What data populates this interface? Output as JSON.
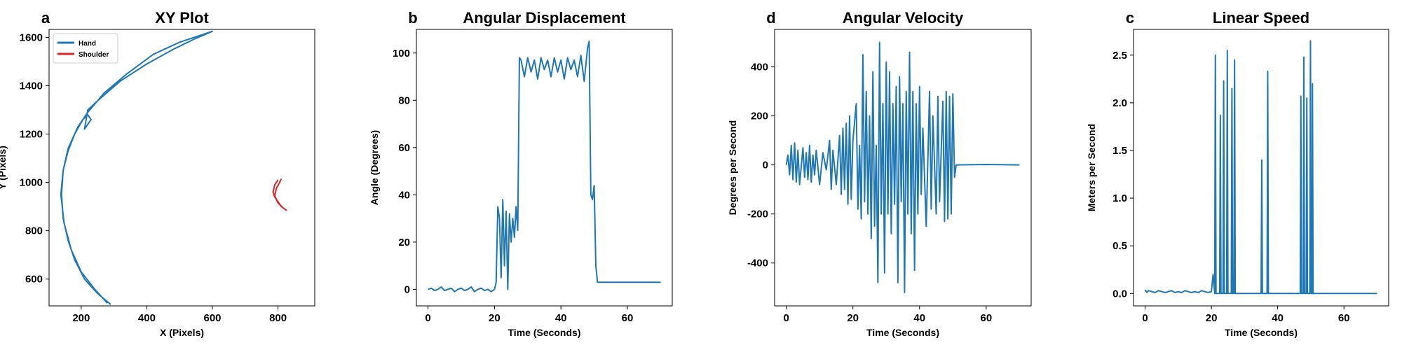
{
  "chart_data": [
    {
      "type": "line",
      "panel": "a",
      "title": "XY Plot",
      "xlabel": "X (Pixels)",
      "ylabel": "Y (Pixels)",
      "xlim": [
        102,
        912
      ],
      "ylim": [
        489,
        1633
      ],
      "xticks": [
        200,
        400,
        600,
        800
      ],
      "yticks": [
        600,
        800,
        1000,
        1200,
        1400,
        1600
      ],
      "legend": "upper left",
      "series": [
        {
          "name": "Hand",
          "color": "#1f77b4",
          "x": [
            290,
            250,
            210,
            180,
            160,
            145,
            140,
            145,
            160,
            180,
            205,
            220,
            230,
            210,
            220,
            260,
            320,
            400,
            480,
            540,
            600,
            500,
            420,
            340,
            270,
            220,
            190,
            160,
            145,
            138,
            148,
            170,
            200,
            240,
            280
          ],
          "values": [
            495,
            540,
            600,
            680,
            760,
            850,
            950,
            1050,
            1130,
            1200,
            1260,
            1280,
            1260,
            1220,
            1300,
            1350,
            1420,
            1490,
            1550,
            1590,
            1625,
            1580,
            1530,
            1450,
            1370,
            1290,
            1230,
            1140,
            1050,
            950,
            830,
            720,
            630,
            560,
            500
          ]
        },
        {
          "name": "Shoulder",
          "color": "#d62728",
          "x": [
            800,
            790,
            785,
            790,
            800,
            810,
            820,
            825,
            815,
            800,
            790,
            795,
            805,
            810
          ],
          "values": [
            1010,
            990,
            960,
            940,
            920,
            900,
            890,
            885,
            895,
            915,
            945,
            975,
            1000,
            1015
          ]
        }
      ]
    },
    {
      "type": "line",
      "panel": "b",
      "title": "Angular Displacement",
      "xlabel": "Time (Seconds)",
      "ylabel": "Angle (Degrees)",
      "xlim": [
        -3.5,
        73.5
      ],
      "ylim": [
        -7,
        110
      ],
      "xticks": [
        0,
        20,
        40,
        60
      ],
      "yticks": [
        0,
        20,
        40,
        60,
        80,
        100
      ],
      "series": [
        {
          "color": "#1f77b4",
          "x": [
            0,
            1,
            2,
            3,
            4,
            5,
            6,
            7,
            8,
            9,
            10,
            11,
            12,
            13,
            14,
            15,
            16,
            17,
            18,
            19,
            20,
            20.5,
            21,
            21.5,
            22,
            22.5,
            23,
            23.5,
            24,
            24.5,
            25,
            25.5,
            26,
            26.5,
            27,
            27.5,
            28,
            29,
            30,
            31,
            32,
            33,
            34,
            35,
            36,
            37,
            38,
            39,
            40,
            41,
            42,
            43,
            44,
            45,
            46,
            47,
            48,
            48.5,
            49,
            49.5,
            50,
            50.5,
            51,
            55,
            60,
            65,
            70
          ],
          "values": [
            0,
            0.5,
            -0.5,
            0,
            1,
            -0.5,
            0,
            0.5,
            -1,
            0,
            0.5,
            -0.5,
            0,
            1,
            -1,
            0,
            0.5,
            -0.5,
            0,
            -1,
            0,
            3,
            35,
            30,
            5,
            38,
            10,
            33,
            0,
            32,
            20,
            30,
            22,
            35,
            25,
            98,
            97,
            90,
            98,
            92,
            97,
            89,
            98,
            93,
            97,
            90,
            98,
            92,
            97,
            89,
            98,
            93,
            97,
            90,
            99,
            88,
            102,
            105,
            40,
            38,
            44,
            10,
            3,
            3,
            3,
            3,
            3
          ]
        }
      ]
    },
    {
      "type": "line",
      "panel": "d",
      "title": "Angular Velocity",
      "xlabel": "Time (Seconds)",
      "ylabel": "Degrees per Second",
      "xlim": [
        -3.5,
        73.5
      ],
      "ylim": [
        -575,
        553
      ],
      "xticks": [
        0,
        20,
        40,
        60
      ],
      "yticks": [
        -400,
        -200,
        0,
        200,
        400
      ],
      "series": [
        {
          "color": "#1f77b4",
          "x": [
            0,
            0.5,
            1,
            1.5,
            2,
            2.5,
            3,
            3.5,
            4,
            5,
            5.5,
            6,
            6.5,
            7,
            7.5,
            8,
            8.5,
            9,
            10,
            11,
            12,
            13,
            13.5,
            14,
            15,
            16,
            16.5,
            17,
            17.5,
            18,
            18.5,
            19,
            19.5,
            20,
            21,
            21.5,
            22,
            22.5,
            23,
            23.5,
            24,
            24.5,
            25,
            25.5,
            26,
            26.5,
            27,
            27.5,
            28,
            28.5,
            29,
            29.5,
            30,
            30.5,
            31,
            31.5,
            32,
            32.5,
            33,
            33.5,
            34,
            34.5,
            35,
            35.5,
            36,
            36.5,
            37,
            37.5,
            38,
            38.5,
            39,
            39.5,
            40,
            40.5,
            41,
            42,
            43,
            43.5,
            44,
            45,
            45.5,
            46,
            47,
            47.5,
            48,
            48.5,
            49,
            49.5,
            50,
            50.5,
            51,
            60,
            70
          ],
          "values": [
            0,
            40,
            -40,
            80,
            -60,
            90,
            -70,
            60,
            -80,
            70,
            -50,
            50,
            -60,
            80,
            -70,
            40,
            -40,
            60,
            -80,
            50,
            -20,
            100,
            -100,
            60,
            -80,
            120,
            -120,
            150,
            -100,
            170,
            -160,
            200,
            -140,
            100,
            250,
            -180,
            80,
            -220,
            450,
            -150,
            300,
            -200,
            200,
            -300,
            380,
            -250,
            80,
            -480,
            500,
            -200,
            250,
            -440,
            420,
            -200,
            380,
            -280,
            250,
            -160,
            320,
            -480,
            360,
            -150,
            250,
            -520,
            300,
            -200,
            460,
            -280,
            300,
            -430,
            250,
            -200,
            320,
            -120,
            150,
            -250,
            300,
            -180,
            200,
            -200,
            280,
            -150,
            260,
            -230,
            300,
            -220,
            280,
            -200,
            290,
            -50,
            0,
            2,
            0
          ]
        }
      ]
    },
    {
      "type": "line",
      "panel": "c",
      "title": "Linear Speed",
      "xlabel": "Time (Seconds)",
      "ylabel": "Meters per Second",
      "xlim": [
        -3.5,
        73.5
      ],
      "ylim": [
        -0.13,
        2.77
      ],
      "xticks": [
        0,
        20,
        40,
        60
      ],
      "yticks": [
        0.0,
        0.5,
        1.0,
        1.5,
        2.0,
        2.5
      ],
      "ytick_labels": [
        "0.0",
        "0.5",
        "1.0",
        "1.5",
        "2.0",
        "2.5"
      ],
      "series": [
        {
          "color": "#1f77b4",
          "x": [
            0,
            0.5,
            1,
            2,
            3,
            4,
            5,
            6,
            7,
            8,
            9,
            10,
            11,
            12,
            13,
            14,
            15,
            16,
            17,
            18,
            19,
            20,
            20.5,
            21,
            21.2,
            21.4,
            22.5,
            22.7,
            22.9,
            23.5,
            23.7,
            23.9,
            24.6,
            24.8,
            25,
            26,
            26.2,
            26.4,
            26.8,
            27,
            27.2,
            35,
            35.2,
            35.4,
            36.8,
            37,
            37.2,
            46.8,
            47,
            47.2,
            47.7,
            47.9,
            48.1,
            48.6,
            48.8,
            49,
            49.7,
            49.9,
            50.1,
            50.4,
            50.5,
            50.7,
            70
          ],
          "values": [
            0.04,
            0.01,
            0.03,
            0.02,
            0.01,
            0.03,
            0.02,
            0.01,
            0.02,
            0.03,
            0.01,
            0.02,
            0.01,
            0.03,
            0.02,
            0.01,
            0.02,
            0.01,
            0.03,
            0.02,
            0.01,
            0.02,
            0.2,
            0,
            2.5,
            0,
            0,
            1.87,
            0,
            0,
            2.23,
            0,
            0,
            2.55,
            0,
            0,
            2.15,
            0,
            0,
            2.45,
            0,
            0,
            1.4,
            0,
            0,
            2.33,
            0,
            0,
            2.07,
            0,
            0,
            2.48,
            0,
            0,
            2.05,
            0,
            0,
            2.65,
            0,
            0,
            2.2,
            0,
            0
          ]
        }
      ]
    }
  ]
}
